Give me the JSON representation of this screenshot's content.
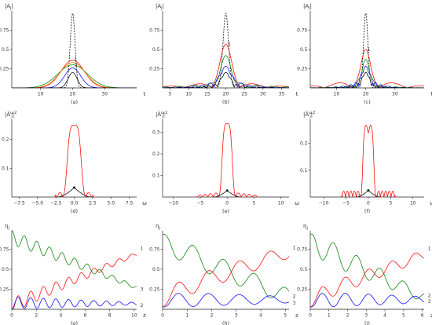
{
  "figure": {
    "panel_count": 9
  },
  "chart_data": [
    {
      "id": "a",
      "type": "line",
      "caption": "(a)",
      "ylabel": "|A_j|",
      "xlabel": "t",
      "xlim": [
        1,
        40
      ],
      "ylim": [
        0,
        1.0
      ],
      "xticks": [
        10,
        20,
        30
      ],
      "yticks": [
        0.25,
        0.5,
        0.75
      ],
      "labels": [
        {
          "text": "1",
          "x": 20.3,
          "y": 0.37
        },
        {
          "text": "3",
          "x": 20.3,
          "y": 0.3
        }
      ],
      "series": [
        {
          "color": "#000000",
          "dash": true,
          "shape": "gauss",
          "center": 20,
          "peak": 0.97,
          "width": 0.75
        },
        {
          "color": "#ff0000",
          "shape": "gauss",
          "center": 20,
          "peak": 0.36,
          "width": 3.6,
          "wobble": 0.0
        },
        {
          "color": "#008000",
          "shape": "gauss",
          "center": 20,
          "peak": 0.3,
          "width": 4.6,
          "wobble": 0.0
        },
        {
          "color": "#ff8c00",
          "shape": "gauss",
          "center": 20,
          "peak": 0.33,
          "width": 3.9,
          "wobble": 0.0
        },
        {
          "color": "#0000ff",
          "shape": "gauss",
          "center": 20,
          "peak": 0.26,
          "width": 2.5,
          "wobble": 0.0
        },
        {
          "color": "#000000",
          "shape": "gauss",
          "center": 20,
          "peak": 0.2,
          "width": 1.4,
          "wobble": 0.0
        }
      ]
    },
    {
      "id": "b",
      "type": "line",
      "caption": "(b)",
      "ylabel": "|A_j|",
      "xlabel": "t",
      "xlim": [
        3,
        37
      ],
      "ylim": [
        0,
        1.0
      ],
      "xticks": [
        5,
        10,
        15,
        20,
        25,
        30,
        35
      ],
      "yticks": [
        0.25,
        0.5,
        0.75
      ],
      "labels": [
        {
          "text": "1",
          "x": 20.3,
          "y": 0.57
        }
      ],
      "series": [
        {
          "color": "#000000",
          "dash": true,
          "shape": "gauss",
          "center": 20,
          "peak": 0.97,
          "width": 0.75
        },
        {
          "color": "#ff0000",
          "shape": "ripple",
          "center": 20,
          "peak": 0.57,
          "width": 1.4,
          "ripple": 0.12,
          "period": 7.5,
          "decay": 9
        },
        {
          "color": "#008000",
          "shape": "ripple",
          "center": 20,
          "peak": 0.42,
          "width": 1.3,
          "ripple": 0.1,
          "period": 4.2,
          "decay": 8
        },
        {
          "color": "#0000ff",
          "shape": "ripple",
          "center": 20,
          "peak": 0.28,
          "width": 1.2,
          "ripple": 0.18,
          "period": 2.1,
          "decay": 4
        },
        {
          "color": "#000000",
          "shape": "ripple",
          "center": 20,
          "peak": 0.2,
          "width": 1.0,
          "ripple": 0.12,
          "period": 1.5,
          "decay": 3
        }
      ]
    },
    {
      "id": "c",
      "type": "line",
      "caption": "(c)",
      "ylabel": "|A_j|",
      "xlabel": "t",
      "xlim": [
        1,
        40
      ],
      "ylim": [
        0,
        1.0
      ],
      "xticks": [
        10,
        20,
        30
      ],
      "yticks": [
        0.25,
        0.5,
        0.75
      ],
      "labels": [
        {
          "text": "1",
          "x": 20.3,
          "y": 0.5
        }
      ],
      "series": [
        {
          "color": "#000000",
          "dash": true,
          "shape": "gauss",
          "center": 20,
          "peak": 0.97,
          "width": 0.75
        },
        {
          "color": "#ff0000",
          "shape": "ripple",
          "center": 20,
          "peak": 0.5,
          "width": 1.4,
          "ripple": 0.15,
          "period": 9.5,
          "decay": 11
        },
        {
          "color": "#008000",
          "shape": "ripple",
          "center": 20,
          "peak": 0.37,
          "width": 1.2,
          "ripple": 0.12,
          "period": 2.6,
          "decay": 5
        },
        {
          "color": "#0000ff",
          "shape": "ripple",
          "center": 20,
          "peak": 0.28,
          "width": 1.1,
          "ripple": 0.22,
          "period": 1.7,
          "decay": 3
        },
        {
          "color": "#000000",
          "shape": "ripple",
          "center": 20,
          "peak": 0.2,
          "width": 1.0,
          "ripple": 0.14,
          "period": 1.3,
          "decay": 2.5
        }
      ]
    },
    {
      "id": "d",
      "type": "line",
      "caption": "(d)",
      "ylabel": "|Ã_j^ω|^2",
      "xlabel": "ω",
      "xlim": [
        -8.5,
        8.5
      ],
      "ylim": [
        0,
        0.27
      ],
      "xticks": [
        -7.5,
        -5.0,
        -2.5,
        0.0,
        2.5,
        5.0,
        7.5
      ],
      "tickFormat": "1dp",
      "yticks": [
        0.1,
        0.2
      ],
      "series": [
        {
          "color": "#ff0000",
          "shape": "sgauss",
          "center": 0,
          "peak": 0.25,
          "width": 1.05,
          "order": 2,
          "sidelobe": 0.02,
          "sideFrom": 1.6,
          "sideTo": 2.6,
          "sidePeriod": 0.75,
          "range": [
            -2.8,
            2.8
          ]
        },
        {
          "color": "#000000",
          "shape": "tri",
          "center": 0,
          "peak": 0.033,
          "half": 2.2,
          "marker": true
        }
      ]
    },
    {
      "id": "e",
      "type": "line",
      "caption": "(e)",
      "ylabel": "|Ã_j^ω|^2",
      "xlabel": "ω",
      "xlim": [
        -12,
        11.5
      ],
      "ylim": [
        0,
        0.36
      ],
      "xticks": [
        -10,
        -5,
        0,
        5,
        10
      ],
      "yticks": [
        0.1,
        0.2,
        0.3
      ],
      "series": [
        {
          "color": "#ff0000",
          "shape": "sgauss",
          "center": 0,
          "peak": 0.34,
          "width": 1.05,
          "order": 2,
          "sidelobe": 0.02,
          "sideFrom": 1.6,
          "sideTo": 5.5,
          "sidePeriod": 1.0,
          "range": [
            -6,
            6
          ]
        },
        {
          "color": "#000000",
          "shape": "tri",
          "center": 0,
          "peak": 0.03,
          "half": 2.4,
          "marker": true
        }
      ]
    },
    {
      "id": "f",
      "type": "line",
      "caption": "(f)",
      "ylabel": "|Ã_j^ω|^2",
      "xlabel": "ω",
      "xlim": [
        -13,
        12.5
      ],
      "ylim": [
        0,
        0.29
      ],
      "xticks": [
        -10,
        -5,
        0,
        5,
        10
      ],
      "yticks": [
        0.1,
        0.2
      ],
      "series": [
        {
          "color": "#ff0000",
          "shape": "twin",
          "center": 0,
          "peak": 0.27,
          "dip": 0.24,
          "width": 1.3,
          "order": 3,
          "sidelobe": 0.022,
          "sideFrom": 1.9,
          "sideTo": 6.0,
          "sidePeriod": 0.8,
          "range": [
            -6.5,
            6.5
          ]
        },
        {
          "color": "#000000",
          "shape": "tri",
          "center": 0,
          "peak": 0.025,
          "half": 2.6,
          "marker": true
        }
      ]
    },
    {
      "id": "g",
      "type": "line",
      "caption": "(g)",
      "ylabel": "η_j",
      "xlabel": "z",
      "xlim": [
        0,
        10.2
      ],
      "ylim": [
        0,
        0.98
      ],
      "xticks": [
        0,
        2,
        4,
        6,
        8,
        10
      ],
      "yticks": [
        0.25,
        0.5,
        0.75
      ],
      "labels": [
        {
          "text": "1",
          "x": 10.5,
          "y": 0.76,
          "out": true
        },
        {
          "text": "3",
          "x": 10.5,
          "y": 0.25,
          "out": true
        },
        {
          "text": "2",
          "x": 10.5,
          "y": 0.05,
          "out": true
        }
      ],
      "series": [
        {
          "color": "#008000",
          "shape": "osc",
          "t0": 0.9,
          "t1": 0.27,
          "amp": 0.09,
          "ampEnd": 0.02,
          "period": 1.03,
          "phase": 0.0
        },
        {
          "color": "#ff0000",
          "shape": "osc",
          "t0": 0.05,
          "t1": 0.69,
          "amp": 0.09,
          "ampEnd": 0.02,
          "period": 1.03,
          "phase": 3.14159,
          "settle": 0.2
        },
        {
          "color": "#0000ff",
          "shape": "osc",
          "t0": 0.08,
          "t1": 0.07,
          "amp": 0.075,
          "ampEnd": 0.015,
          "period": 1.03,
          "phase": 3.14159,
          "settle": 0.2
        }
      ]
    },
    {
      "id": "h",
      "type": "line",
      "caption": "(h)",
      "ylabel": "η_j",
      "xlabel": "z",
      "xlim": [
        0,
        5.15
      ],
      "ylim": [
        0,
        0.98
      ],
      "xticks": [
        0,
        1,
        2,
        3,
        4,
        5
      ],
      "yticks": [
        0.25,
        0.5,
        0.75
      ],
      "labels": [
        {
          "text": "1",
          "x": 5.3,
          "y": 0.77,
          "out": true
        },
        {
          "text": "2",
          "x": 5.3,
          "y": 0.16,
          "out": true
        },
        {
          "text": "3",
          "x": 5.3,
          "y": 0.08,
          "out": true
        }
      ],
      "series": [
        {
          "color": "#008000",
          "shape": "osc",
          "t0": 0.82,
          "t1": 0.15,
          "amp": 0.15,
          "ampEnd": 0.1,
          "period": 1.25,
          "phase": 0.0,
          "start": 0.93
        },
        {
          "color": "#ff0000",
          "shape": "osc",
          "t0": 0.18,
          "t1": 0.72,
          "amp": 0.12,
          "ampEnd": 0.08,
          "period": 1.25,
          "phase": 3.14159,
          "start": 0.03
        },
        {
          "color": "#0000ff",
          "shape": "osc",
          "t0": 0.12,
          "t1": 0.12,
          "amp": 0.1,
          "ampEnd": 0.04,
          "period": 1.25,
          "phase": 3.14159,
          "start": 0.03
        }
      ]
    },
    {
      "id": "i",
      "type": "line",
      "caption": "(i)",
      "ylabel": "η_j",
      "xlabel": "z",
      "xlim": [
        0,
        6.1
      ],
      "ylim": [
        0,
        0.98
      ],
      "xticks": [
        0,
        1,
        2,
        3,
        4,
        5,
        6
      ],
      "yticks": [
        0.25,
        0.5,
        0.75
      ],
      "labels": [
        {
          "text": "1",
          "x": 6.3,
          "y": 0.76,
          "out": true
        },
        {
          "text": "2",
          "x": 6.3,
          "y": 0.17,
          "out": true
        },
        {
          "text": "3",
          "x": 6.3,
          "y": 0.1,
          "out": true
        }
      ],
      "series": [
        {
          "color": "#008000",
          "shape": "osc",
          "t0": 0.82,
          "t1": 0.15,
          "amp": 0.17,
          "ampEnd": 0.06,
          "period": 1.25,
          "phase": 0.0,
          "start": 0.93
        },
        {
          "color": "#ff0000",
          "shape": "osc",
          "t0": 0.15,
          "t1": 0.68,
          "amp": 0.1,
          "ampEnd": 0.06,
          "period": 1.25,
          "phase": 3.14159,
          "start": 0.03
        },
        {
          "color": "#0000ff",
          "shape": "osc",
          "t0": 0.12,
          "t1": 0.12,
          "amp": 0.1,
          "ampEnd": 0.04,
          "period": 1.25,
          "phase": 3.14159,
          "start": 0.03
        }
      ]
    }
  ]
}
